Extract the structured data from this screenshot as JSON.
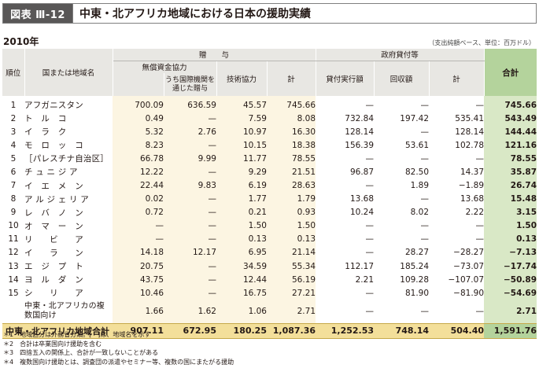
{
  "header": {
    "figure_label": "図表 Ⅲ-12",
    "title": "中東・北アフリカ地域における日本の援助実績"
  },
  "year": "2010年",
  "unit_note": "（支出純額ベース、単位：百万ドル）",
  "columns": {
    "rank": "順位",
    "country": "国または地域名",
    "gift": "贈　　与",
    "grant_aid": "無償資金協力",
    "via_intl": "うち国際機関を通じた贈与",
    "tech": "技術協力",
    "gift_total": "計",
    "loan": "政府貸付等",
    "loan_exec": "貸付実行額",
    "recovery": "回収額",
    "loan_total": "計",
    "grand_total": "合計"
  },
  "rows": [
    {
      "rank": "1",
      "name": "アフガニスタン",
      "grant": "700.09",
      "intl": "636.59",
      "tech": "45.57",
      "gift_total": "745.66",
      "exec": "—",
      "recov": "—",
      "loan_total": "—",
      "total": "745.66"
    },
    {
      "rank": "2",
      "name": "ト　ル　コ",
      "grant": "0.49",
      "intl": "—",
      "tech": "7.59",
      "gift_total": "8.08",
      "exec": "732.84",
      "recov": "197.42",
      "loan_total": "535.41",
      "total": "543.49"
    },
    {
      "rank": "3",
      "name": "イ　ラ　ク",
      "grant": "5.32",
      "intl": "2.76",
      "tech": "10.97",
      "gift_total": "16.30",
      "exec": "128.14",
      "recov": "—",
      "loan_total": "128.14",
      "total": "144.44"
    },
    {
      "rank": "4",
      "name": "モ　ロ　ッ　コ",
      "grant": "8.23",
      "intl": "—",
      "tech": "10.15",
      "gift_total": "18.38",
      "exec": "156.39",
      "recov": "53.61",
      "loan_total": "102.78",
      "total": "121.16"
    },
    {
      "rank": "5",
      "name": "［パレスチナ自治区］",
      "grant": "66.78",
      "intl": "9.99",
      "tech": "11.77",
      "gift_total": "78.55",
      "exec": "—",
      "recov": "—",
      "loan_total": "—",
      "total": "78.55"
    },
    {
      "rank": "6",
      "name": "チ ュ ニ ジ ア",
      "grant": "12.22",
      "intl": "—",
      "tech": "9.29",
      "gift_total": "21.51",
      "exec": "96.87",
      "recov": "82.50",
      "loan_total": "14.37",
      "total": "35.87"
    },
    {
      "rank": "7",
      "name": "イ　エ　メ　ン",
      "grant": "22.44",
      "intl": "9.83",
      "tech": "6.19",
      "gift_total": "28.63",
      "exec": "—",
      "recov": "1.89",
      "loan_total": "−1.89",
      "total": "26.74"
    },
    {
      "rank": "8",
      "name": "ア ル ジ ェ リ ア",
      "grant": "0.02",
      "intl": "—",
      "tech": "1.77",
      "gift_total": "1.79",
      "exec": "13.68",
      "recov": "—",
      "loan_total": "13.68",
      "total": "15.48"
    },
    {
      "rank": "9",
      "name": "レ　バ　ノ　ン",
      "grant": "0.72",
      "intl": "—",
      "tech": "0.21",
      "gift_total": "0.93",
      "exec": "10.24",
      "recov": "8.02",
      "loan_total": "2.22",
      "total": "3.15"
    },
    {
      "rank": "10",
      "name": "オ　マ　ー　ン",
      "grant": "—",
      "intl": "—",
      "tech": "1.50",
      "gift_total": "1.50",
      "exec": "—",
      "recov": "—",
      "loan_total": "—",
      "total": "1.50"
    },
    {
      "rank": "11",
      "name": "リ　　ビ　　ア",
      "grant": "—",
      "intl": "—",
      "tech": "0.13",
      "gift_total": "0.13",
      "exec": "—",
      "recov": "—",
      "loan_total": "—",
      "total": "0.13"
    },
    {
      "rank": "12",
      "name": "イ　　ラ　　ン",
      "grant": "14.18",
      "intl": "12.17",
      "tech": "6.95",
      "gift_total": "21.14",
      "exec": "—",
      "recov": "28.27",
      "loan_total": "−28.27",
      "total": "−7.13"
    },
    {
      "rank": "13",
      "name": "エ　ジ　プ　ト",
      "grant": "20.75",
      "intl": "—",
      "tech": "34.59",
      "gift_total": "55.34",
      "exec": "112.17",
      "recov": "185.24",
      "loan_total": "−73.07",
      "total": "−17.74"
    },
    {
      "rank": "14",
      "name": "ヨ　ル　ダ　ン",
      "grant": "43.75",
      "intl": "—",
      "tech": "12.44",
      "gift_total": "56.19",
      "exec": "2.21",
      "recov": "109.28",
      "loan_total": "−107.07",
      "total": "−50.89"
    },
    {
      "rank": "15",
      "name": "シ　　リ　　ア",
      "grant": "10.46",
      "intl": "—",
      "tech": "16.75",
      "gift_total": "27.21",
      "exec": "—",
      "recov": "81.90",
      "loan_total": "−81.90",
      "total": "−54.69"
    }
  ],
  "multi_row": {
    "rank": "",
    "name": "中東・北アフリカの複数国向け",
    "grant": "1.66",
    "intl": "1.62",
    "tech": "1.06",
    "gift_total": "2.71",
    "exec": "—",
    "recov": "—",
    "loan_total": "—",
    "total": "2.71"
  },
  "footer": {
    "label": "中東・北アフリカ地域合計",
    "grant": "907.11",
    "intl": "672.95",
    "tech": "180.25",
    "gift_total": "1,087.36",
    "exec": "1,252.53",
    "recov": "748.14",
    "loan_total": "504.40",
    "total": "1,591.76"
  },
  "notes": [
    "＊1　地域区分は外務省分類。[　]は、地域名を示す",
    "＊2　合計は卒業国向け援助を含む",
    "＊3　四捨五入の関係上、合計が一致しないことがある",
    "＊4　複数国向け援助とは、調査団の派遣やセミナー等、複数の国にまたがる援助"
  ]
}
